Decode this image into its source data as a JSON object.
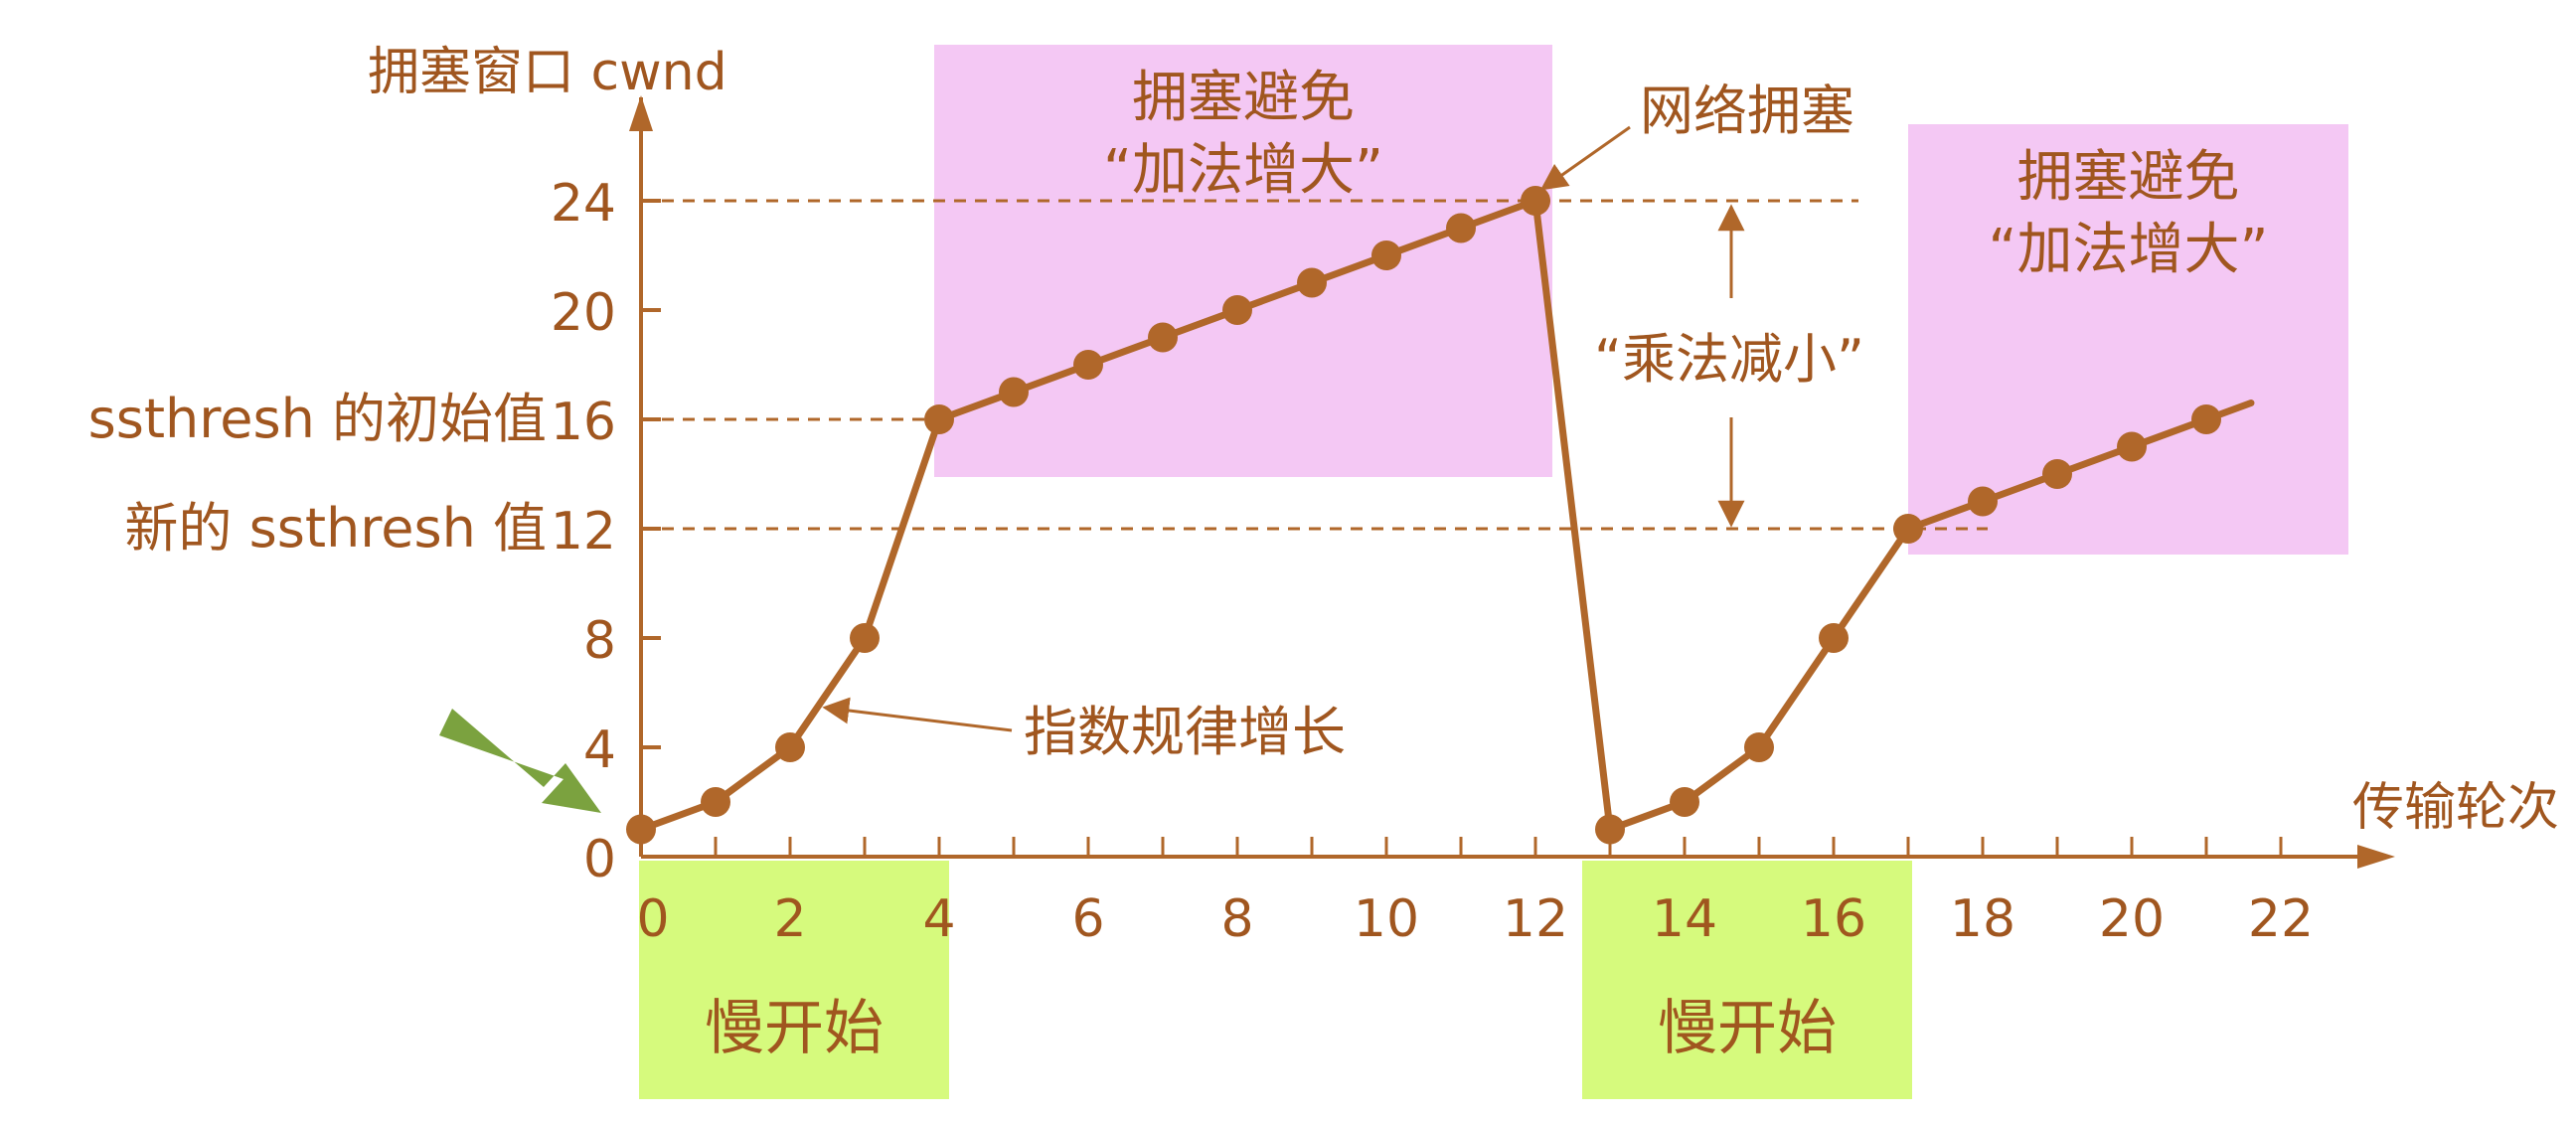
{
  "colors": {
    "line": "#B0672A",
    "text": "#A0561F",
    "congestion_box": "#F4C8F4",
    "slow_start_box": "#D6FA7D",
    "arrow": "#7BA23F"
  },
  "chart_data": {
    "type": "line",
    "y_axis_label": "拥塞窗口 cwnd",
    "x_axis_label": "传输轮次",
    "x_ticks": [
      0,
      2,
      4,
      6,
      8,
      10,
      12,
      14,
      16,
      18,
      20,
      22
    ],
    "y_ticks": [
      0,
      4,
      8,
      12,
      16,
      20,
      24
    ],
    "xlim": [
      0,
      22
    ],
    "ylim": [
      0,
      24
    ],
    "series": [
      {
        "values": [
          [
            0,
            1
          ],
          [
            1,
            2
          ],
          [
            2,
            4
          ],
          [
            3,
            8
          ],
          [
            4,
            16
          ],
          [
            5,
            17
          ],
          [
            6,
            18
          ],
          [
            7,
            19
          ],
          [
            8,
            20
          ],
          [
            9,
            21
          ],
          [
            10,
            22
          ],
          [
            11,
            23
          ],
          [
            12,
            24
          ],
          [
            13,
            1
          ],
          [
            14,
            2
          ],
          [
            15,
            4
          ],
          [
            16,
            8
          ],
          [
            17,
            12
          ],
          [
            18,
            13
          ],
          [
            19,
            14
          ],
          [
            20,
            15
          ],
          [
            21,
            16
          ]
        ]
      }
    ],
    "reference_lines": [
      {
        "y": 24
      },
      {
        "y": 16,
        "label": "ssthresh 的初始值"
      },
      {
        "y": 12,
        "label": "新的 ssthresh 值"
      }
    ],
    "regions": [
      {
        "kind": "congestion",
        "x": [
          4,
          12
        ],
        "title": "拥塞避免",
        "subtitle": "“加法增大”"
      },
      {
        "kind": "congestion",
        "x": [
          17,
          22
        ],
        "title": "拥塞避免",
        "subtitle": "“加法增大”"
      },
      {
        "kind": "slow",
        "x": [
          0,
          4
        ],
        "title": "慢开始"
      },
      {
        "kind": "slow",
        "x": [
          13,
          17
        ],
        "title": "慢开始"
      }
    ],
    "annotations": {
      "congestion": "网络拥塞",
      "multiplicative_decrease": "“乘法减小”",
      "exponential_growth": "指数规律增长"
    }
  }
}
